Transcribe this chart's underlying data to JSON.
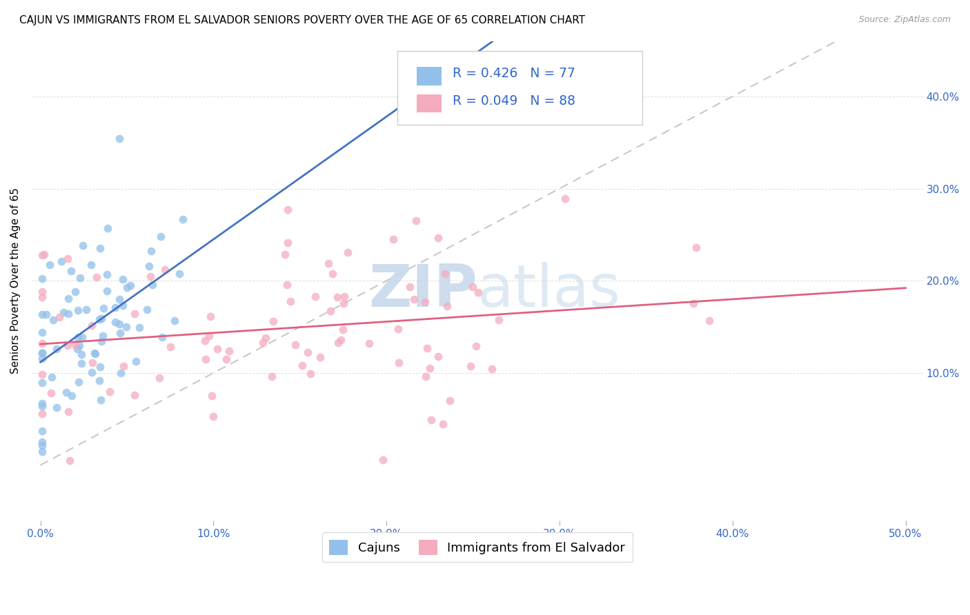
{
  "title": "CAJUN VS IMMIGRANTS FROM EL SALVADOR SENIORS POVERTY OVER THE AGE OF 65 CORRELATION CHART",
  "source": "Source: ZipAtlas.com",
  "ylabel": "Seniors Poverty Over the Age of 65",
  "cajun_R": "0.426",
  "cajun_N": "77",
  "elsalvador_R": "0.049",
  "elsalvador_N": "88",
  "cajun_color": "#92C0EA",
  "elsalvador_color": "#F4ABBE",
  "cajun_line_color": "#4472C4",
  "elsalvador_line_color": "#E06080",
  "diagonal_color": "#C8C8C8",
  "watermark_zip": "ZIP",
  "watermark_atlas": "atlas",
  "title_fontsize": 11,
  "label_fontsize": 11,
  "tick_fontsize": 11,
  "legend_fontsize": 13,
  "source_fontsize": 9
}
